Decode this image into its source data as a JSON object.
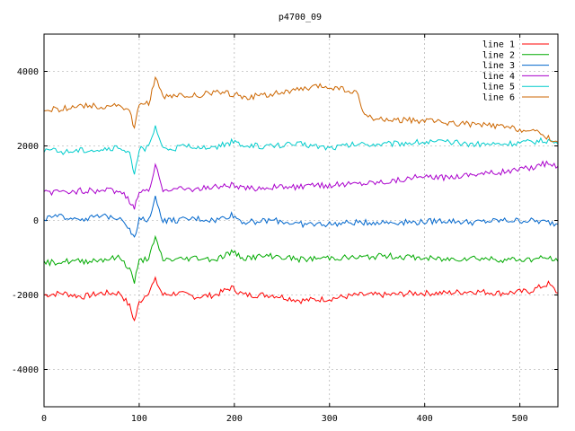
{
  "chart_data": {
    "type": "line",
    "title": "p4700_09",
    "xlabel": "",
    "ylabel": "",
    "xlim": [
      0,
      540
    ],
    "ylim": [
      -5000,
      5000
    ],
    "x_ticks": [
      0,
      100,
      200,
      300,
      400,
      500
    ],
    "y_ticks": [
      -4000,
      -2000,
      0,
      2000,
      4000
    ],
    "grid": true,
    "legend_position": "top-right",
    "series": [
      {
        "name": "line 1",
        "color": "#ff0000",
        "points": [
          [
            0,
            -2000
          ],
          [
            20,
            -1950
          ],
          [
            40,
            -2050
          ],
          [
            60,
            -1950
          ],
          [
            80,
            -1950
          ],
          [
            90,
            -2300
          ],
          [
            95,
            -2700
          ],
          [
            100,
            -2200
          ],
          [
            110,
            -1900
          ],
          [
            117,
            -1600
          ],
          [
            125,
            -2000
          ],
          [
            140,
            -1950
          ],
          [
            160,
            -2050
          ],
          [
            180,
            -2000
          ],
          [
            197,
            -1800
          ],
          [
            210,
            -2000
          ],
          [
            240,
            -2000
          ],
          [
            270,
            -2150
          ],
          [
            300,
            -2100
          ],
          [
            330,
            -2000
          ],
          [
            360,
            -2000
          ],
          [
            390,
            -1950
          ],
          [
            420,
            -1950
          ],
          [
            450,
            -1900
          ],
          [
            480,
            -1950
          ],
          [
            510,
            -1900
          ],
          [
            530,
            -1700
          ],
          [
            540,
            -1950
          ]
        ]
      },
      {
        "name": "line 2",
        "color": "#00aa00",
        "points": [
          [
            0,
            -1150
          ],
          [
            20,
            -1100
          ],
          [
            40,
            -1100
          ],
          [
            60,
            -1050
          ],
          [
            80,
            -1000
          ],
          [
            90,
            -1300
          ],
          [
            95,
            -1650
          ],
          [
            100,
            -1100
          ],
          [
            110,
            -1000
          ],
          [
            117,
            -500
          ],
          [
            125,
            -1050
          ],
          [
            140,
            -1050
          ],
          [
            160,
            -1000
          ],
          [
            180,
            -1050
          ],
          [
            197,
            -850
          ],
          [
            210,
            -1000
          ],
          [
            240,
            -950
          ],
          [
            270,
            -1050
          ],
          [
            300,
            -1000
          ],
          [
            330,
            -1000
          ],
          [
            360,
            -950
          ],
          [
            390,
            -1000
          ],
          [
            420,
            -1050
          ],
          [
            450,
            -1000
          ],
          [
            480,
            -1050
          ],
          [
            510,
            -1050
          ],
          [
            530,
            -1000
          ],
          [
            540,
            -1100
          ]
        ]
      },
      {
        "name": "line 3",
        "color": "#0066cc",
        "points": [
          [
            0,
            50
          ],
          [
            20,
            100
          ],
          [
            40,
            50
          ],
          [
            60,
            100
          ],
          [
            80,
            100
          ],
          [
            90,
            -200
          ],
          [
            95,
            -500
          ],
          [
            100,
            0
          ],
          [
            110,
            50
          ],
          [
            117,
            600
          ],
          [
            125,
            0
          ],
          [
            140,
            0
          ],
          [
            160,
            50
          ],
          [
            180,
            0
          ],
          [
            197,
            150
          ],
          [
            210,
            -50
          ],
          [
            240,
            0
          ],
          [
            270,
            -100
          ],
          [
            300,
            -100
          ],
          [
            330,
            -50
          ],
          [
            360,
            -50
          ],
          [
            390,
            -50
          ],
          [
            420,
            0
          ],
          [
            450,
            -50
          ],
          [
            480,
            0
          ],
          [
            510,
            0
          ],
          [
            530,
            -50
          ],
          [
            540,
            -100
          ]
        ]
      },
      {
        "name": "line 4",
        "color": "#aa00cc",
        "points": [
          [
            0,
            750
          ],
          [
            20,
            750
          ],
          [
            40,
            800
          ],
          [
            60,
            800
          ],
          [
            80,
            800
          ],
          [
            90,
            500
          ],
          [
            95,
            300
          ],
          [
            100,
            800
          ],
          [
            110,
            750
          ],
          [
            117,
            1450
          ],
          [
            125,
            850
          ],
          [
            140,
            850
          ],
          [
            160,
            850
          ],
          [
            180,
            900
          ],
          [
            197,
            950
          ],
          [
            210,
            850
          ],
          [
            240,
            900
          ],
          [
            270,
            900
          ],
          [
            300,
            950
          ],
          [
            330,
            1000
          ],
          [
            360,
            1050
          ],
          [
            390,
            1150
          ],
          [
            420,
            1150
          ],
          [
            450,
            1250
          ],
          [
            480,
            1300
          ],
          [
            510,
            1400
          ],
          [
            530,
            1550
          ],
          [
            540,
            1450
          ]
        ]
      },
      {
        "name": "line 5",
        "color": "#00cccc",
        "points": [
          [
            0,
            1900
          ],
          [
            20,
            1850
          ],
          [
            40,
            1900
          ],
          [
            60,
            1900
          ],
          [
            80,
            1950
          ],
          [
            90,
            1750
          ],
          [
            95,
            1300
          ],
          [
            100,
            1900
          ],
          [
            110,
            1950
          ],
          [
            117,
            2500
          ],
          [
            125,
            1900
          ],
          [
            140,
            1950
          ],
          [
            160,
            2000
          ],
          [
            180,
            1950
          ],
          [
            197,
            2100
          ],
          [
            210,
            2000
          ],
          [
            240,
            2000
          ],
          [
            270,
            2050
          ],
          [
            300,
            1950
          ],
          [
            330,
            2050
          ],
          [
            360,
            2050
          ],
          [
            390,
            2100
          ],
          [
            420,
            2100
          ],
          [
            450,
            2050
          ],
          [
            480,
            2050
          ],
          [
            510,
            2100
          ],
          [
            530,
            2150
          ],
          [
            540,
            2050
          ]
        ]
      },
      {
        "name": "line 6",
        "color": "#cc6600",
        "points": [
          [
            0,
            2950
          ],
          [
            20,
            3000
          ],
          [
            40,
            3100
          ],
          [
            60,
            3050
          ],
          [
            80,
            3100
          ],
          [
            90,
            2900
          ],
          [
            95,
            2450
          ],
          [
            100,
            3100
          ],
          [
            110,
            3150
          ],
          [
            117,
            3800
          ],
          [
            125,
            3300
          ],
          [
            140,
            3350
          ],
          [
            160,
            3350
          ],
          [
            180,
            3450
          ],
          [
            197,
            3400
          ],
          [
            210,
            3300
          ],
          [
            240,
            3400
          ],
          [
            270,
            3500
          ],
          [
            290,
            3600
          ],
          [
            310,
            3550
          ],
          [
            330,
            3400
          ],
          [
            335,
            2850
          ],
          [
            350,
            2700
          ],
          [
            380,
            2700
          ],
          [
            410,
            2650
          ],
          [
            440,
            2600
          ],
          [
            470,
            2550
          ],
          [
            500,
            2450
          ],
          [
            520,
            2350
          ],
          [
            540,
            2100
          ]
        ]
      }
    ]
  }
}
